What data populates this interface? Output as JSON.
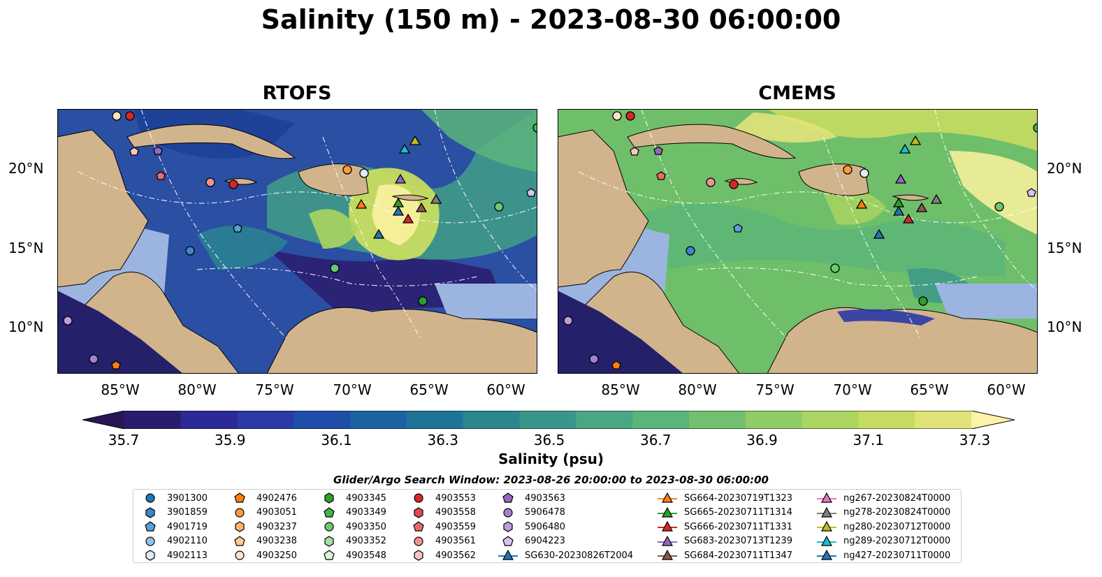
{
  "title": "Salinity (150 m) - 2023-08-30 06:00:00",
  "panels": [
    {
      "title": "RTOFS"
    },
    {
      "title": "CMEMS"
    }
  ],
  "lat_labels": [
    "20°N",
    "15°N",
    "10°N"
  ],
  "lon_labels": [
    "85°W",
    "80°W",
    "75°W",
    "70°W",
    "65°W",
    "60°W"
  ],
  "colorbar": {
    "label": "Salinity (psu)",
    "ticks": [
      "35.7",
      "35.9",
      "36.1",
      "36.3",
      "36.5",
      "36.7",
      "36.9",
      "37.1",
      "37.3"
    ],
    "colors": [
      "#2a1b6e",
      "#2c2a96",
      "#2a3aa6",
      "#1f4ea8",
      "#1a63a0",
      "#1e7497",
      "#2a8790",
      "#3a968a",
      "#4aa783",
      "#5ab47b",
      "#72c06e",
      "#8fcb66",
      "#abd560",
      "#c6dc60",
      "#e1e27a"
    ],
    "under_color": "#2a1654",
    "over_color": "#fdf3a8"
  },
  "legend": {
    "title": "Glider/Argo Search Window: 2023-08-26 20:00:00 to 2023-08-30 06:00:00",
    "items": [
      {
        "label": "3901300",
        "marker": "circle",
        "color": "#1f77b4"
      },
      {
        "label": "3901859",
        "marker": "hexagon",
        "color": "#3a86c8"
      },
      {
        "label": "4901719",
        "marker": "pentagon",
        "color": "#5aa0d8"
      },
      {
        "label": "4902110",
        "marker": "circle",
        "color": "#8fc3ea"
      },
      {
        "label": "4902113",
        "marker": "hexagon",
        "color": "#dcebf7"
      },
      {
        "label": "4902476",
        "marker": "pentagon",
        "color": "#ff7f0e"
      },
      {
        "label": "4903051",
        "marker": "circle",
        "color": "#ff9a3a"
      },
      {
        "label": "4903237",
        "marker": "hexagon",
        "color": "#ffb36b"
      },
      {
        "label": "4903238",
        "marker": "pentagon",
        "color": "#ffc98f"
      },
      {
        "label": "4903250",
        "marker": "circle",
        "color": "#ffe2c4"
      },
      {
        "label": "4903345",
        "marker": "hexagon",
        "color": "#2ca02c"
      },
      {
        "label": "4903349",
        "marker": "pentagon",
        "color": "#45b445"
      },
      {
        "label": "4903350",
        "marker": "circle",
        "color": "#6cc86c"
      },
      {
        "label": "4903352",
        "marker": "hexagon",
        "color": "#a5e0a5"
      },
      {
        "label": "4903548",
        "marker": "pentagon",
        "color": "#d7f5d0"
      },
      {
        "label": "4903553",
        "marker": "circle",
        "color": "#d62728"
      },
      {
        "label": "4903558",
        "marker": "hexagon",
        "color": "#e2484a"
      },
      {
        "label": "4903559",
        "marker": "pentagon",
        "color": "#ea6a6b"
      },
      {
        "label": "4903561",
        "marker": "circle",
        "color": "#f29393"
      },
      {
        "label": "4903562",
        "marker": "hexagon",
        "color": "#f8c4c2"
      },
      {
        "label": "4903563",
        "marker": "pentagon",
        "color": "#9467bd"
      },
      {
        "label": "5906478",
        "marker": "circle",
        "color": "#a680cc"
      },
      {
        "label": "5906480",
        "marker": "hexagon",
        "color": "#bc9ddb"
      },
      {
        "label": "6904223",
        "marker": "pentagon",
        "color": "#d7c2ec"
      },
      {
        "label": "SG630-20230826T2004",
        "marker": "triangle",
        "color": "#1f77b4"
      },
      {
        "label": "SG664-20230719T1323",
        "marker": "triangle",
        "color": "#ff7f0e"
      },
      {
        "label": "SG665-20230711T1314",
        "marker": "triangle",
        "color": "#2ca02c"
      },
      {
        "label": "SG666-20230711T1331",
        "marker": "triangle",
        "color": "#d62728"
      },
      {
        "label": "SG683-20230713T1239",
        "marker": "triangle",
        "color": "#9467bd"
      },
      {
        "label": "SG684-20230711T1347",
        "marker": "triangle",
        "color": "#8c564b"
      },
      {
        "label": "ng267-20230824T0000",
        "marker": "triangle",
        "color": "#e377c2"
      },
      {
        "label": "ng278-20230824T0000",
        "marker": "triangle",
        "color": "#7f7f7f"
      },
      {
        "label": "ng280-20230712T0000",
        "marker": "triangle",
        "color": "#bcbd22"
      },
      {
        "label": "ng289-20230712T0000",
        "marker": "triangle",
        "color": "#17becf"
      },
      {
        "label": "ng427-20230711T0000",
        "marker": "triangle",
        "color": "#1f77b4"
      }
    ]
  },
  "colors": {
    "land": "#d2b48c",
    "shelf": "#9bb5e0",
    "rtofs_base": "#2a4fa3",
    "cmems_base": "#6fbf6a"
  }
}
